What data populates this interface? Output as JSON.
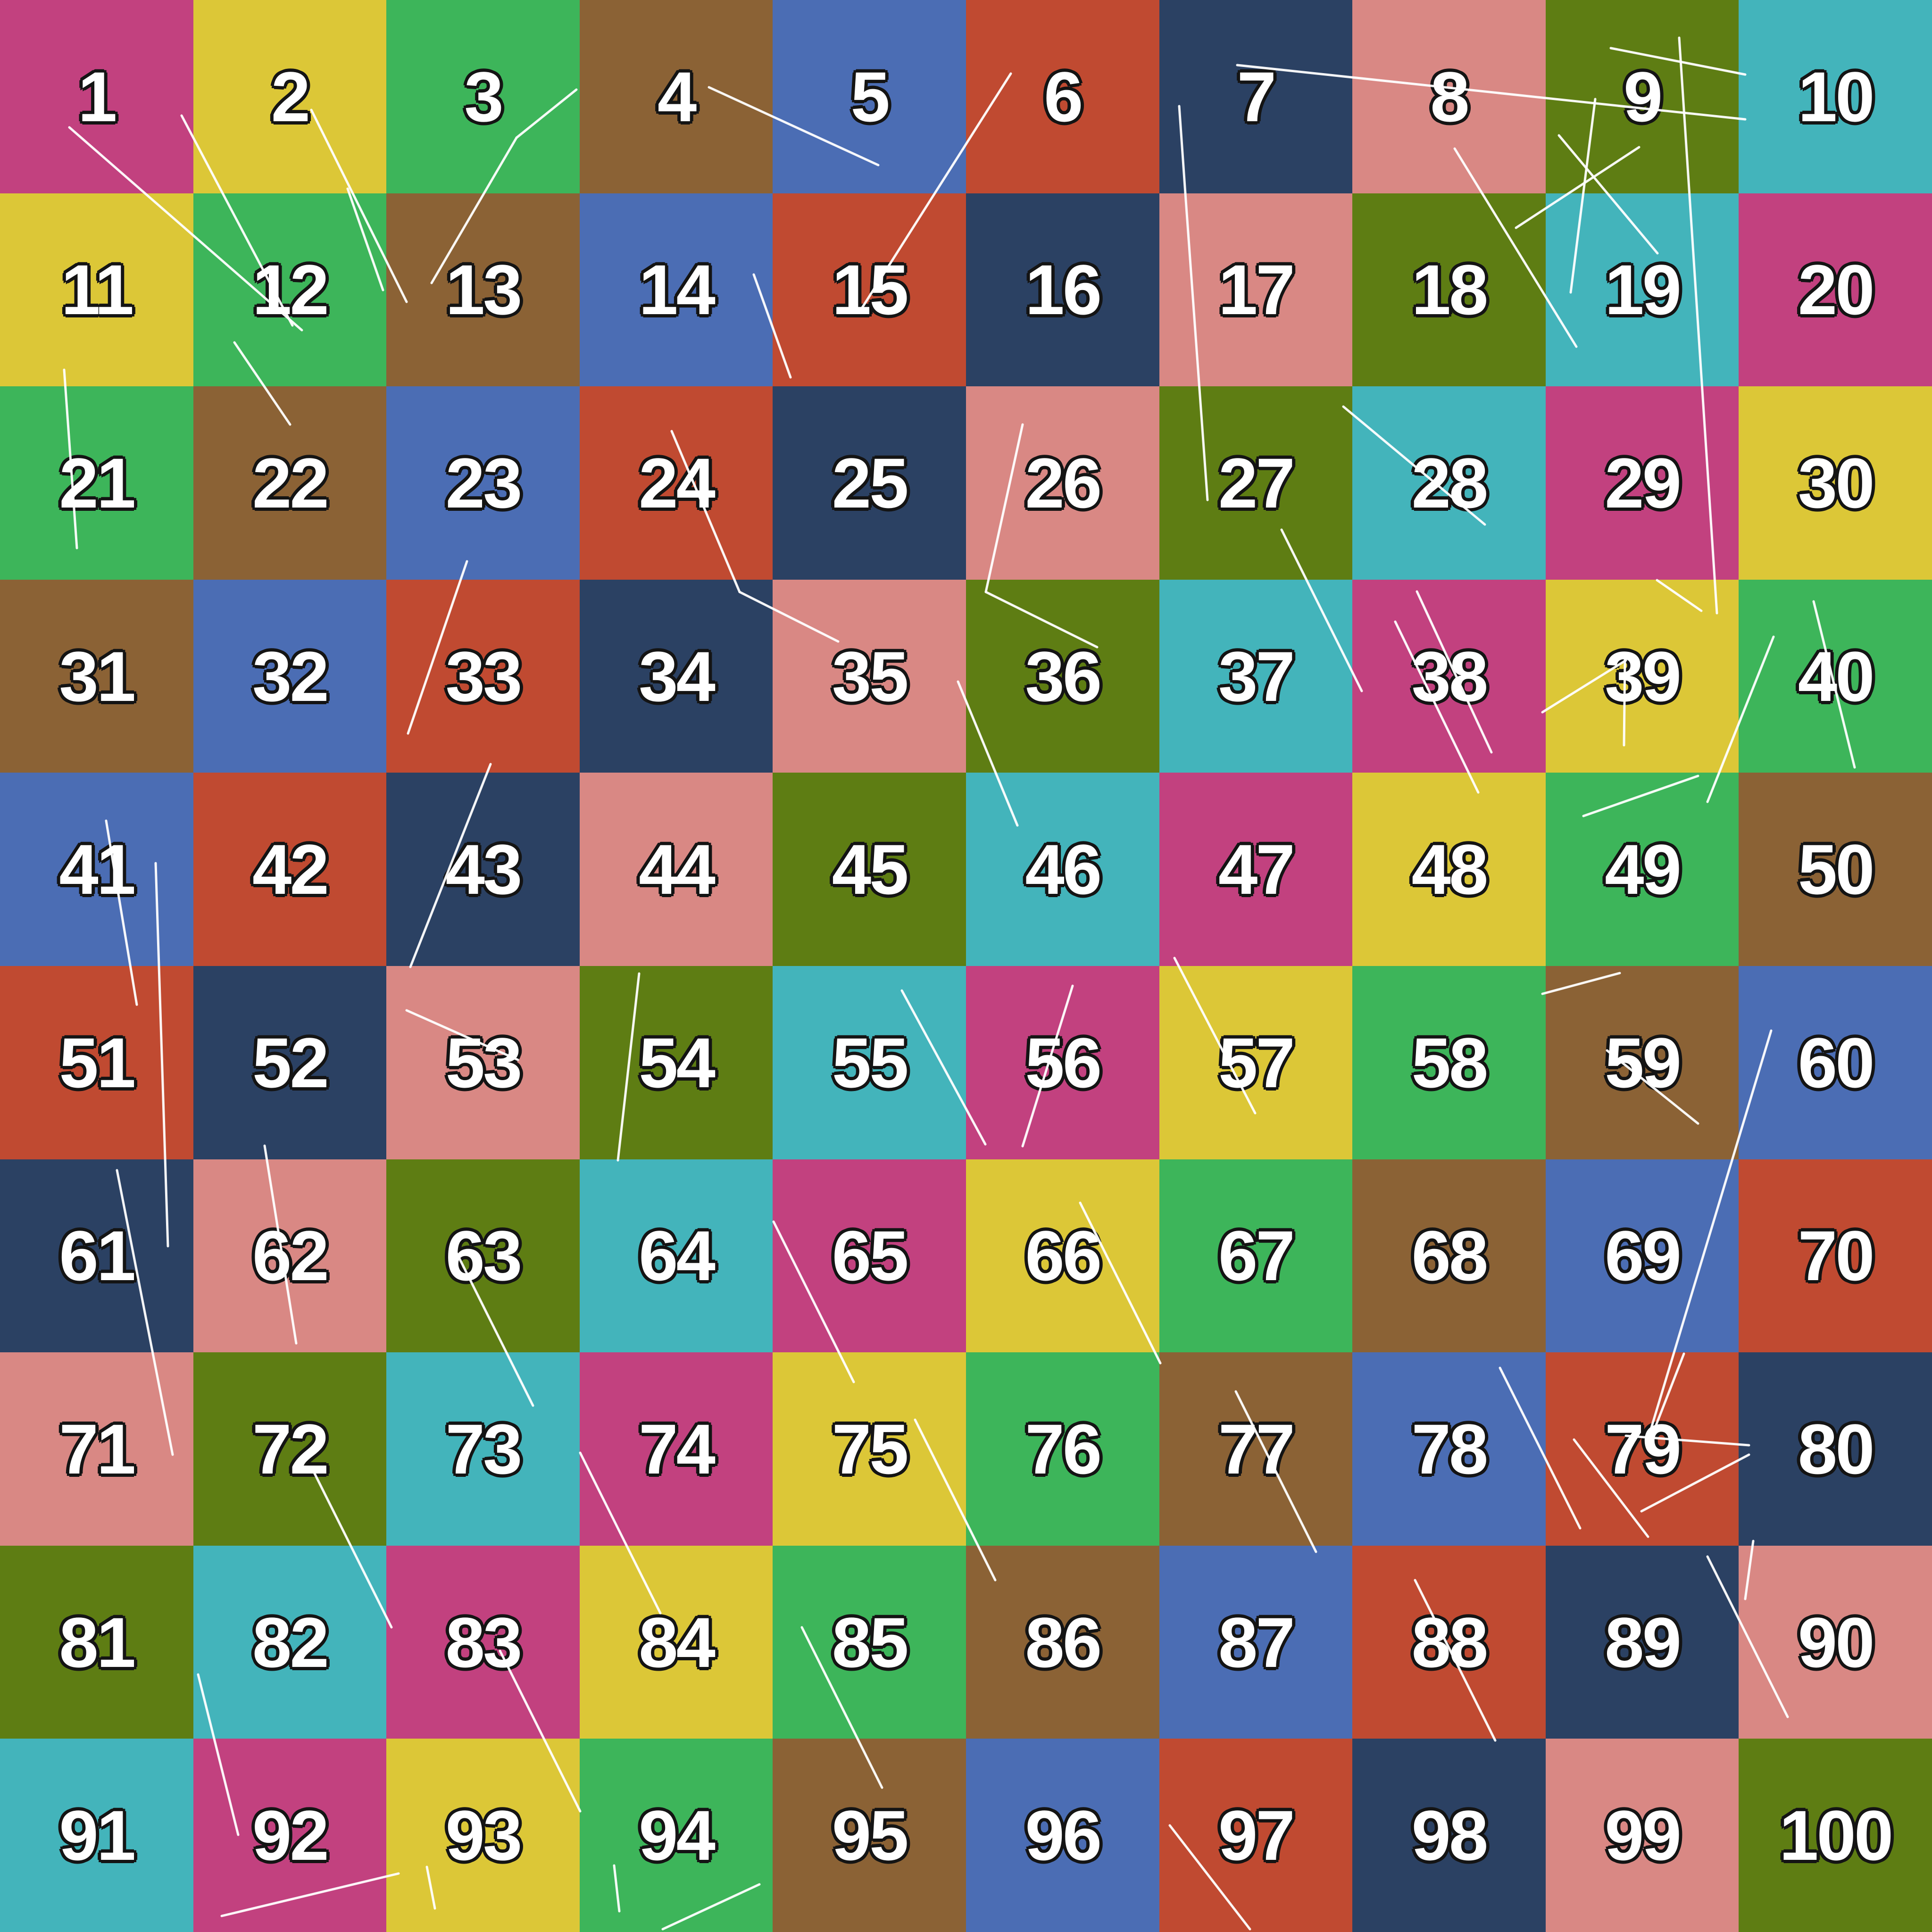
{
  "palette": {
    "magenta": "#c2417f",
    "yellow": "#dcc737",
    "green": "#3db55a",
    "brown": "#8b6235",
    "blue": "#4b6db4",
    "red": "#c04a31",
    "navy": "#2b4163",
    "salmon": "#d98884",
    "olive": "#5e7d13",
    "teal": "#43b4bb"
  },
  "number_style": {
    "fill": "#ffffff",
    "outline": "#141414"
  },
  "grid": {
    "rows": 10,
    "cols": 10,
    "row_data": [
      {
        "labels": [
          "1",
          "2",
          "3",
          "4",
          "5",
          "6",
          "7",
          "8",
          "9",
          "10"
        ],
        "colors": [
          "magenta",
          "yellow",
          "green",
          "brown",
          "blue",
          "red",
          "navy",
          "salmon",
          "olive",
          "teal"
        ]
      },
      {
        "labels": [
          "11",
          "12",
          "13",
          "14",
          "15",
          "16",
          "17",
          "18",
          "19",
          "20"
        ],
        "colors": [
          "yellow",
          "green",
          "brown",
          "blue",
          "red",
          "navy",
          "salmon",
          "olive",
          "teal",
          "magenta"
        ]
      },
      {
        "labels": [
          "21",
          "22",
          "23",
          "24",
          "25",
          "26",
          "27",
          "28",
          "29",
          "30"
        ],
        "colors": [
          "green",
          "brown",
          "blue",
          "red",
          "navy",
          "salmon",
          "olive",
          "teal",
          "magenta",
          "yellow"
        ]
      },
      {
        "labels": [
          "31",
          "32",
          "33",
          "34",
          "35",
          "36",
          "37",
          "38",
          "39",
          "40"
        ],
        "colors": [
          "brown",
          "blue",
          "red",
          "navy",
          "salmon",
          "olive",
          "teal",
          "magenta",
          "yellow",
          "green"
        ]
      },
      {
        "labels": [
          "41",
          "42",
          "43",
          "44",
          "45",
          "46",
          "47",
          "48",
          "49",
          "50"
        ],
        "colors": [
          "blue",
          "red",
          "navy",
          "salmon",
          "olive",
          "teal",
          "magenta",
          "yellow",
          "green",
          "brown"
        ]
      },
      {
        "labels": [
          "51",
          "52",
          "53",
          "54",
          "55",
          "56",
          "57",
          "58",
          "59",
          "60"
        ],
        "colors": [
          "red",
          "navy",
          "salmon",
          "olive",
          "teal",
          "magenta",
          "yellow",
          "green",
          "brown",
          "blue"
        ]
      },
      {
        "labels": [
          "61",
          "62",
          "63",
          "64",
          "65",
          "66",
          "67",
          "68",
          "69",
          "70"
        ],
        "colors": [
          "navy",
          "salmon",
          "olive",
          "teal",
          "magenta",
          "yellow",
          "green",
          "brown",
          "blue",
          "red"
        ]
      },
      {
        "labels": [
          "71",
          "72",
          "73",
          "74",
          "75",
          "76",
          "77",
          "78",
          "79",
          "80"
        ],
        "colors": [
          "salmon",
          "olive",
          "teal",
          "magenta",
          "yellow",
          "green",
          "brown",
          "blue",
          "red",
          "navy"
        ]
      },
      {
        "labels": [
          "81",
          "82",
          "83",
          "84",
          "85",
          "86",
          "87",
          "88",
          "89",
          "90"
        ],
        "colors": [
          "olive",
          "teal",
          "magenta",
          "yellow",
          "green",
          "brown",
          "blue",
          "red",
          "navy",
          "salmon"
        ]
      },
      {
        "labels": [
          "91",
          "92",
          "93",
          "94",
          "95",
          "96",
          "97",
          "98",
          "99",
          "100"
        ],
        "colors": [
          "teal",
          "magenta",
          "yellow",
          "green",
          "brown",
          "blue",
          "red",
          "navy",
          "salmon",
          "olive"
        ]
      }
    ]
  },
  "streaks": {
    "color": "#ffffff",
    "width": 5,
    "opacity": 0.95,
    "segments": [
      [
        147,
        270,
        640,
        700
      ],
      [
        385,
        245,
        620,
        690
      ],
      [
        660,
        233,
        862,
        640
      ],
      [
        737,
        400,
        812,
        615
      ],
      [
        915,
        600,
        1095,
        292
      ],
      [
        1095,
        292,
        1222,
        190
      ],
      [
        1503,
        185,
        1862,
        350
      ],
      [
        2143,
        156,
        1828,
        652
      ],
      [
        1598,
        582,
        1676,
        800
      ],
      [
        2623,
        138,
        3700,
        253
      ],
      [
        3415,
        102,
        3700,
        158
      ],
      [
        2500,
        225,
        2513,
        410
      ],
      [
        2513,
        410,
        2560,
        1060
      ],
      [
        3084,
        315,
        3342,
        735
      ],
      [
        3214,
        483,
        3475,
        312
      ],
      [
        3305,
        287,
        3514,
        537
      ],
      [
        3560,
        80,
        3640,
        1300
      ],
      [
        2848,
        862,
        3148,
        1112
      ],
      [
        3382,
        210,
        3330,
        620
      ],
      [
        136,
        784,
        163,
        1162
      ],
      [
        497,
        726,
        615,
        900
      ],
      [
        990,
        1190,
        865,
        1555
      ],
      [
        1424,
        914,
        1568,
        1255
      ],
      [
        1568,
        1255,
        1777,
        1360
      ],
      [
        2168,
        900,
        2090,
        1255
      ],
      [
        2090,
        1255,
        2326,
        1372
      ],
      [
        2717,
        1123,
        2887,
        1465
      ],
      [
        3004,
        1254,
        3162,
        1595
      ],
      [
        3513,
        1230,
        3607,
        1295
      ],
      [
        3760,
        1350,
        3620,
        1700
      ],
      [
        3270,
        1510,
        3447,
        1400
      ],
      [
        3445,
        1398,
        3443,
        1580
      ],
      [
        3357,
        1730,
        3600,
        1645
      ],
      [
        1040,
        1620,
        870,
        2050
      ],
      [
        225,
        1740,
        290,
        2130
      ],
      [
        2031,
        1445,
        2157,
        1750
      ],
      [
        2958,
        1318,
        3134,
        1680
      ],
      [
        3845,
        1275,
        3932,
        1627
      ],
      [
        3407,
        2227,
        3600,
        2382
      ],
      [
        3755,
        2185,
        3500,
        3030
      ],
      [
        3270,
        2107,
        3434,
        2063
      ],
      [
        330,
        1830,
        356,
        2642
      ],
      [
        248,
        2481,
        366,
        3084
      ],
      [
        561,
        2429,
        628,
        2848
      ],
      [
        862,
        2142,
        1098,
        2247
      ],
      [
        2168,
        2430,
        2274,
        2090
      ],
      [
        1355,
        2064,
        1310,
        2460
      ],
      [
        1912,
        2100,
        2089,
        2426
      ],
      [
        2490,
        2031,
        2661,
        2360
      ],
      [
        3570,
        2870,
        3510,
        3024
      ],
      [
        3447,
        3044,
        3708,
        3064
      ],
      [
        3708,
        3084,
        3480,
        3204
      ],
      [
        3337,
        3052,
        3494,
        3258
      ],
      [
        960,
        2640,
        1130,
        2980
      ],
      [
        1640,
        2590,
        1810,
        2930
      ],
      [
        2290,
        2550,
        2460,
        2890
      ],
      [
        660,
        3110,
        830,
        3450
      ],
      [
        1230,
        3080,
        1400,
        3420
      ],
      [
        1940,
        3010,
        2110,
        3350
      ],
      [
        2620,
        2950,
        2790,
        3290
      ],
      [
        3180,
        2900,
        3350,
        3240
      ],
      [
        420,
        3550,
        505,
        3890
      ],
      [
        1060,
        3500,
        1230,
        3840
      ],
      [
        1700,
        3450,
        1870,
        3790
      ],
      [
        470,
        4062,
        845,
        3972
      ],
      [
        905,
        3958,
        922,
        4046
      ],
      [
        1302,
        3955,
        1313,
        4052
      ],
      [
        1405,
        4090,
        1610,
        3995
      ],
      [
        2480,
        3870,
        2650,
        4090
      ],
      [
        3000,
        3350,
        3170,
        3690
      ],
      [
        3620,
        3300,
        3790,
        3640
      ],
      [
        3717,
        3267,
        3700,
        3390
      ]
    ]
  }
}
